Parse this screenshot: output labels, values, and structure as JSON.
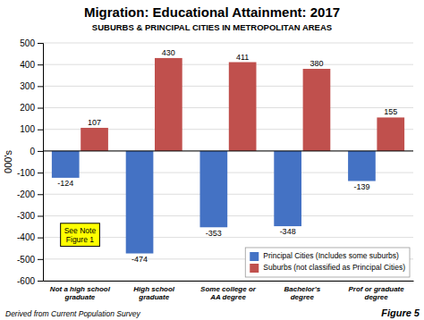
{
  "chart_data": {
    "type": "bar",
    "title": "Migration: Educational Attainment: 2017",
    "subtitle": "SUBURBS & PRINCIPAL CITIES IN METROPOLITAN AREAS",
    "categories": [
      "Not a high school\ngraduate",
      "High school\ngraduate",
      "Some college or\nAA degree",
      "Bachelor's\ndegree",
      "Prof or graduate\ndegree"
    ],
    "series": [
      {
        "name": "Principal Cities (Includes some suburbs)",
        "color": "#4472C4",
        "values": [
          -124,
          -474,
          -353,
          -348,
          -139
        ]
      },
      {
        "name": "Suburbs (not classified as Principal Cities)",
        "color": "#C0504D",
        "values": [
          107,
          430,
          411,
          380,
          155
        ]
      }
    ],
    "ylim": [
      -600,
      500
    ],
    "yticks": [
      -600,
      -500,
      -400,
      -300,
      -200,
      -100,
      0,
      100,
      200,
      300,
      400,
      500
    ],
    "ylabel": "000's",
    "grid": true,
    "legend": "lower right",
    "data_labels": true,
    "annotation": "See Note\nFigure 1",
    "footnote": "Derived from Current Population Survey",
    "figure_label": "Figure 5"
  }
}
